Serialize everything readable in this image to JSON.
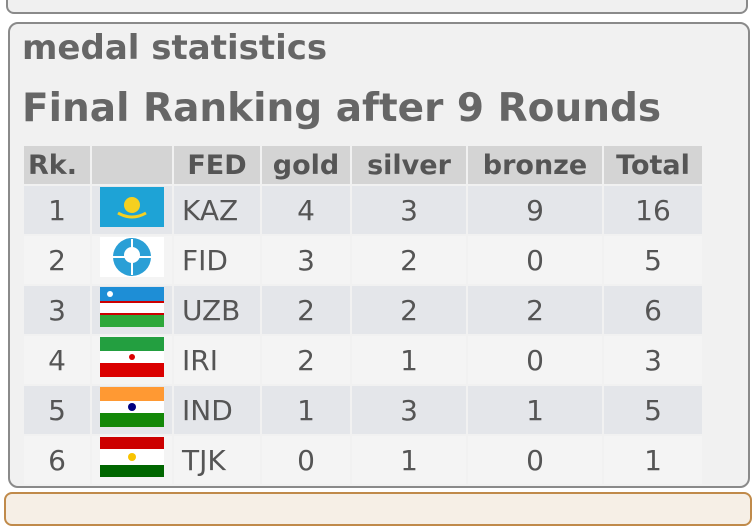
{
  "header": {
    "title": "medal statistics",
    "subtitle": "Final Ranking after 9 Rounds"
  },
  "table": {
    "columns": [
      "Rk.",
      "FED",
      "gold",
      "silver",
      "bronze",
      "Total"
    ],
    "rows": [
      [
        1,
        "KAZ",
        4,
        3,
        9,
        16
      ],
      [
        2,
        "FID",
        3,
        2,
        0,
        5
      ],
      [
        3,
        "UZB",
        2,
        2,
        2,
        6
      ],
      [
        4,
        "IRI",
        2,
        1,
        0,
        3
      ],
      [
        5,
        "IND",
        1,
        3,
        1,
        5
      ],
      [
        6,
        "TJK",
        0,
        1,
        0,
        1
      ]
    ]
  }
}
